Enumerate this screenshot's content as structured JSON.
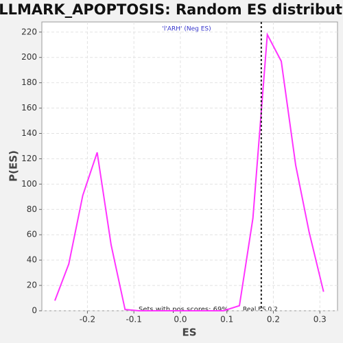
{
  "chart_data": {
    "type": "line",
    "title": "HALLMARK_APOPTOSIS: Random ES distribution",
    "subtitle": "'l'ARH' (Neg ES)",
    "x_label": "ES",
    "y_label": "P(ES)",
    "x": [
      -0.27,
      -0.24,
      -0.21,
      -0.179,
      -0.149,
      -0.119,
      -0.089,
      -0.059,
      -0.029,
      0.002,
      0.032,
      0.063,
      0.093,
      0.127,
      0.156,
      0.187,
      0.217,
      0.248,
      0.277,
      0.308
    ],
    "series": [
      {
        "name": "P(ES)",
        "color": "#ff33ff",
        "values": [
          8,
          37,
          91,
          125,
          52,
          1,
          0,
          0,
          0,
          0,
          0,
          0,
          0,
          4,
          73,
          218,
          197,
          115,
          62,
          15
        ]
      }
    ],
    "real_es": 0.174,
    "annotations": [
      "Sets with pos scores: 69%",
      "Real ES 0.2"
    ],
    "xlim": [
      -0.298,
      0.338
    ],
    "ylim": [
      0,
      228
    ],
    "xticks": [
      -0.2,
      -0.1,
      {
        "value": 0,
        "label": "0.0"
      },
      0.1,
      0.2,
      0.3
    ],
    "yticks": [
      0,
      20,
      40,
      60,
      80,
      100,
      120,
      140,
      160,
      180,
      200,
      220
    ],
    "grid": true
  }
}
